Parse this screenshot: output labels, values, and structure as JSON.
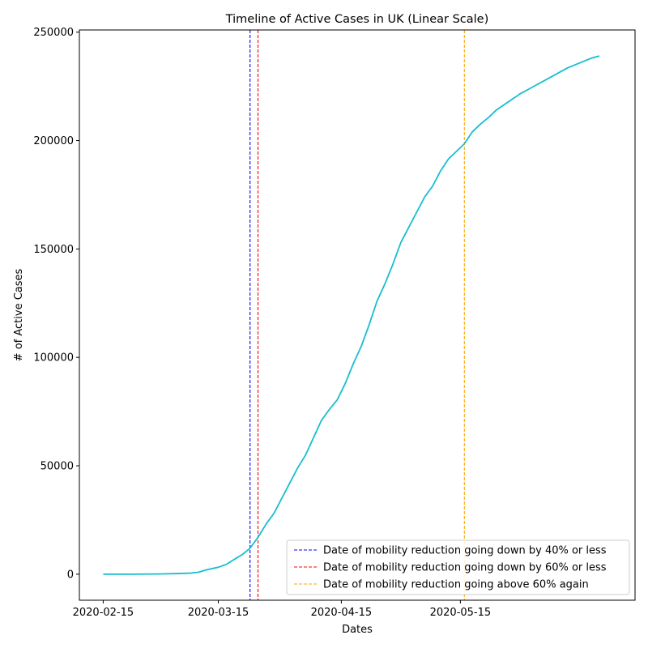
{
  "chart_data": {
    "type": "line",
    "title": "Timeline of Active Cases in UK (Linear Scale)",
    "xlabel": "Dates",
    "ylabel": "# of Active Cases",
    "x_ticks": [
      "2020-02-15",
      "2020-03-15",
      "2020-04-15",
      "2020-05-15"
    ],
    "y_ticks": [
      0,
      50000,
      100000,
      150000,
      200000,
      250000
    ],
    "xlim": [
      "2020-02-09",
      "2020-06-28"
    ],
    "ylim": [
      -12000,
      251000
    ],
    "grid": false,
    "legend_position": "lower right",
    "series": [
      {
        "color": "#17becf",
        "points": [
          [
            "2020-02-15",
            0
          ],
          [
            "2020-02-22",
            0
          ],
          [
            "2020-02-29",
            100
          ],
          [
            "2020-03-05",
            300
          ],
          [
            "2020-03-08",
            500
          ],
          [
            "2020-03-10",
            900
          ],
          [
            "2020-03-12",
            2000
          ],
          [
            "2020-03-15",
            3200
          ],
          [
            "2020-03-17",
            4500
          ],
          [
            "2020-03-19",
            6800
          ],
          [
            "2020-03-21",
            9000
          ],
          [
            "2020-03-23",
            12000
          ],
          [
            "2020-03-25",
            17000
          ],
          [
            "2020-03-27",
            23000
          ],
          [
            "2020-03-29",
            28000
          ],
          [
            "2020-03-31",
            35000
          ],
          [
            "2020-04-02",
            42000
          ],
          [
            "2020-04-04",
            49000
          ],
          [
            "2020-04-06",
            55000
          ],
          [
            "2020-04-08",
            63000
          ],
          [
            "2020-04-10",
            71000
          ],
          [
            "2020-04-12",
            76000
          ],
          [
            "2020-04-14",
            80500
          ],
          [
            "2020-04-16",
            88000
          ],
          [
            "2020-04-18",
            97000
          ],
          [
            "2020-04-20",
            105000
          ],
          [
            "2020-04-22",
            115000
          ],
          [
            "2020-04-24",
            126000
          ],
          [
            "2020-04-26",
            134000
          ],
          [
            "2020-04-28",
            143000
          ],
          [
            "2020-04-30",
            153000
          ],
          [
            "2020-05-02",
            160000
          ],
          [
            "2020-05-04",
            167000
          ],
          [
            "2020-05-06",
            174000
          ],
          [
            "2020-05-08",
            179000
          ],
          [
            "2020-05-10",
            186000
          ],
          [
            "2020-05-12",
            191500
          ],
          [
            "2020-05-14",
            195000
          ],
          [
            "2020-05-16",
            198500
          ],
          [
            "2020-05-18",
            204000
          ],
          [
            "2020-05-20",
            207500
          ],
          [
            "2020-05-22",
            210500
          ],
          [
            "2020-05-24",
            214000
          ],
          [
            "2020-05-26",
            216500
          ],
          [
            "2020-05-28",
            219000
          ],
          [
            "2020-05-30",
            221500
          ],
          [
            "2020-06-01",
            223500
          ],
          [
            "2020-06-03",
            225500
          ],
          [
            "2020-06-05",
            227500
          ],
          [
            "2020-06-07",
            229500
          ],
          [
            "2020-06-09",
            231500
          ],
          [
            "2020-06-11",
            233500
          ],
          [
            "2020-06-13",
            235000
          ],
          [
            "2020-06-15",
            236500
          ],
          [
            "2020-06-17",
            238000
          ],
          [
            "2020-06-19",
            239000
          ]
        ]
      }
    ],
    "vlines": [
      {
        "date": "2020-03-23",
        "color": "#0000ff",
        "label": "Date of mobility reduction going down by 40% or less"
      },
      {
        "date": "2020-03-25",
        "color": "#ff0000",
        "label": "Date of mobility reduction going down by 60% or less"
      },
      {
        "date": "2020-05-16",
        "color": "#ffa500",
        "label": "Date of mobility reduction going above 60% again"
      }
    ]
  }
}
